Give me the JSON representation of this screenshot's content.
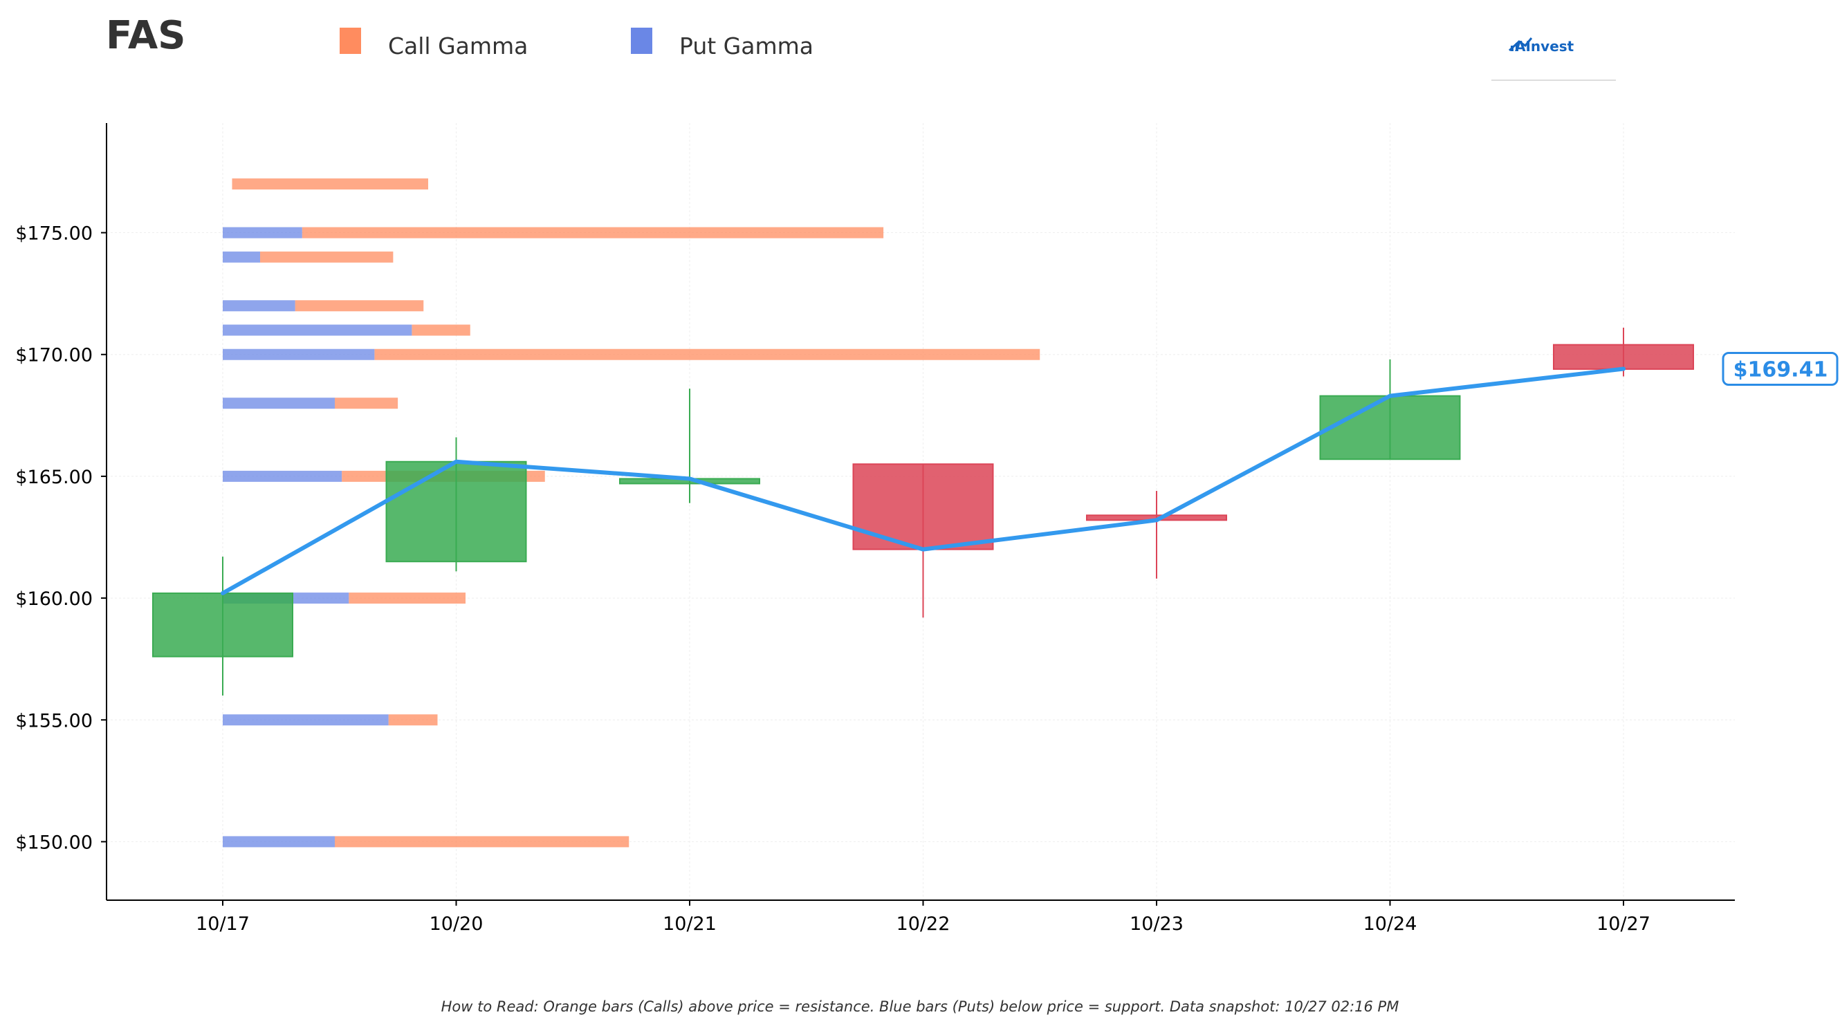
{
  "chart_data": {
    "type": "candlestick",
    "title": "FAS",
    "legend": [
      {
        "name": "Call Gamma",
        "color": "#ff8c5f"
      },
      {
        "name": "Put Gamma",
        "color": "#6a87e6"
      }
    ],
    "legend_placement": "top",
    "logo": "AInvest",
    "x_categories": [
      "10/17",
      "10/20",
      "10/21",
      "10/22",
      "10/23",
      "10/24",
      "10/27"
    ],
    "y_ticks": [
      150,
      155,
      160,
      165,
      170,
      175
    ],
    "y_tick_labels": [
      "$150.00",
      "$155.00",
      "$160.00",
      "$165.00",
      "$170.00",
      "$175.00"
    ],
    "ylim": [
      147.6,
      179.5
    ],
    "grid": true,
    "candles": [
      {
        "date": "10/17",
        "open": 157.6,
        "high": 161.7,
        "low": 156.0,
        "close": 160.2
      },
      {
        "date": "10/20",
        "open": 161.5,
        "high": 166.6,
        "low": 161.1,
        "close": 165.6
      },
      {
        "date": "10/21",
        "open": 164.7,
        "high": 168.6,
        "low": 163.9,
        "close": 164.9
      },
      {
        "date": "10/22",
        "open": 165.5,
        "high": 165.5,
        "low": 159.2,
        "close": 162.0
      },
      {
        "date": "10/23",
        "open": 163.4,
        "high": 164.4,
        "low": 160.8,
        "close": 163.2
      },
      {
        "date": "10/24",
        "open": 165.7,
        "high": 169.8,
        "low": 165.7,
        "close": 168.3
      },
      {
        "date": "10/27",
        "open": 170.4,
        "high": 171.1,
        "low": 169.1,
        "close": 169.4
      }
    ],
    "price_line": {
      "color": "#3399ee",
      "values": [
        160.2,
        165.6,
        164.9,
        162.0,
        163.2,
        168.3,
        169.41
      ]
    },
    "last_price_label": "$169.41",
    "gamma_x_unit": "date-axis position (0 = 10/17, 1 = 10/20, ...)",
    "gamma_levels": [
      {
        "strike": 177,
        "put_start": 0.04,
        "put_end": 0.04,
        "call_end": 0.88
      },
      {
        "strike": 175,
        "put_start": 0.0,
        "put_end": 0.34,
        "call_end": 2.83
      },
      {
        "strike": 174,
        "put_start": 0.0,
        "put_end": 0.16,
        "call_end": 0.73
      },
      {
        "strike": 172,
        "put_start": 0.0,
        "put_end": 0.31,
        "call_end": 0.86
      },
      {
        "strike": 171,
        "put_start": 0.0,
        "put_end": 0.81,
        "call_end": 1.06
      },
      {
        "strike": 170,
        "put_start": 0.0,
        "put_end": 0.65,
        "call_end": 3.5
      },
      {
        "strike": 168,
        "put_start": 0.0,
        "put_end": 0.48,
        "call_end": 0.75
      },
      {
        "strike": 165,
        "put_start": 0.0,
        "put_end": 0.51,
        "call_end": 1.38
      },
      {
        "strike": 160,
        "put_start": 0.0,
        "put_end": 0.54,
        "call_end": 1.04
      },
      {
        "strike": 155,
        "put_start": 0.0,
        "put_end": 0.71,
        "call_end": 0.92
      },
      {
        "strike": 150,
        "put_start": 0.0,
        "put_end": 0.48,
        "call_end": 1.74
      }
    ],
    "colors": {
      "up": "#3aab52",
      "down": "#dc4557",
      "call": "#ff8c5f",
      "put": "#6a87e6",
      "price_label": "#2b8ce6"
    },
    "footnote": "How to Read: Orange bars (Calls) above price = resistance. Blue bars (Puts) below price = support. Data snapshot: 10/27 02:16 PM"
  }
}
